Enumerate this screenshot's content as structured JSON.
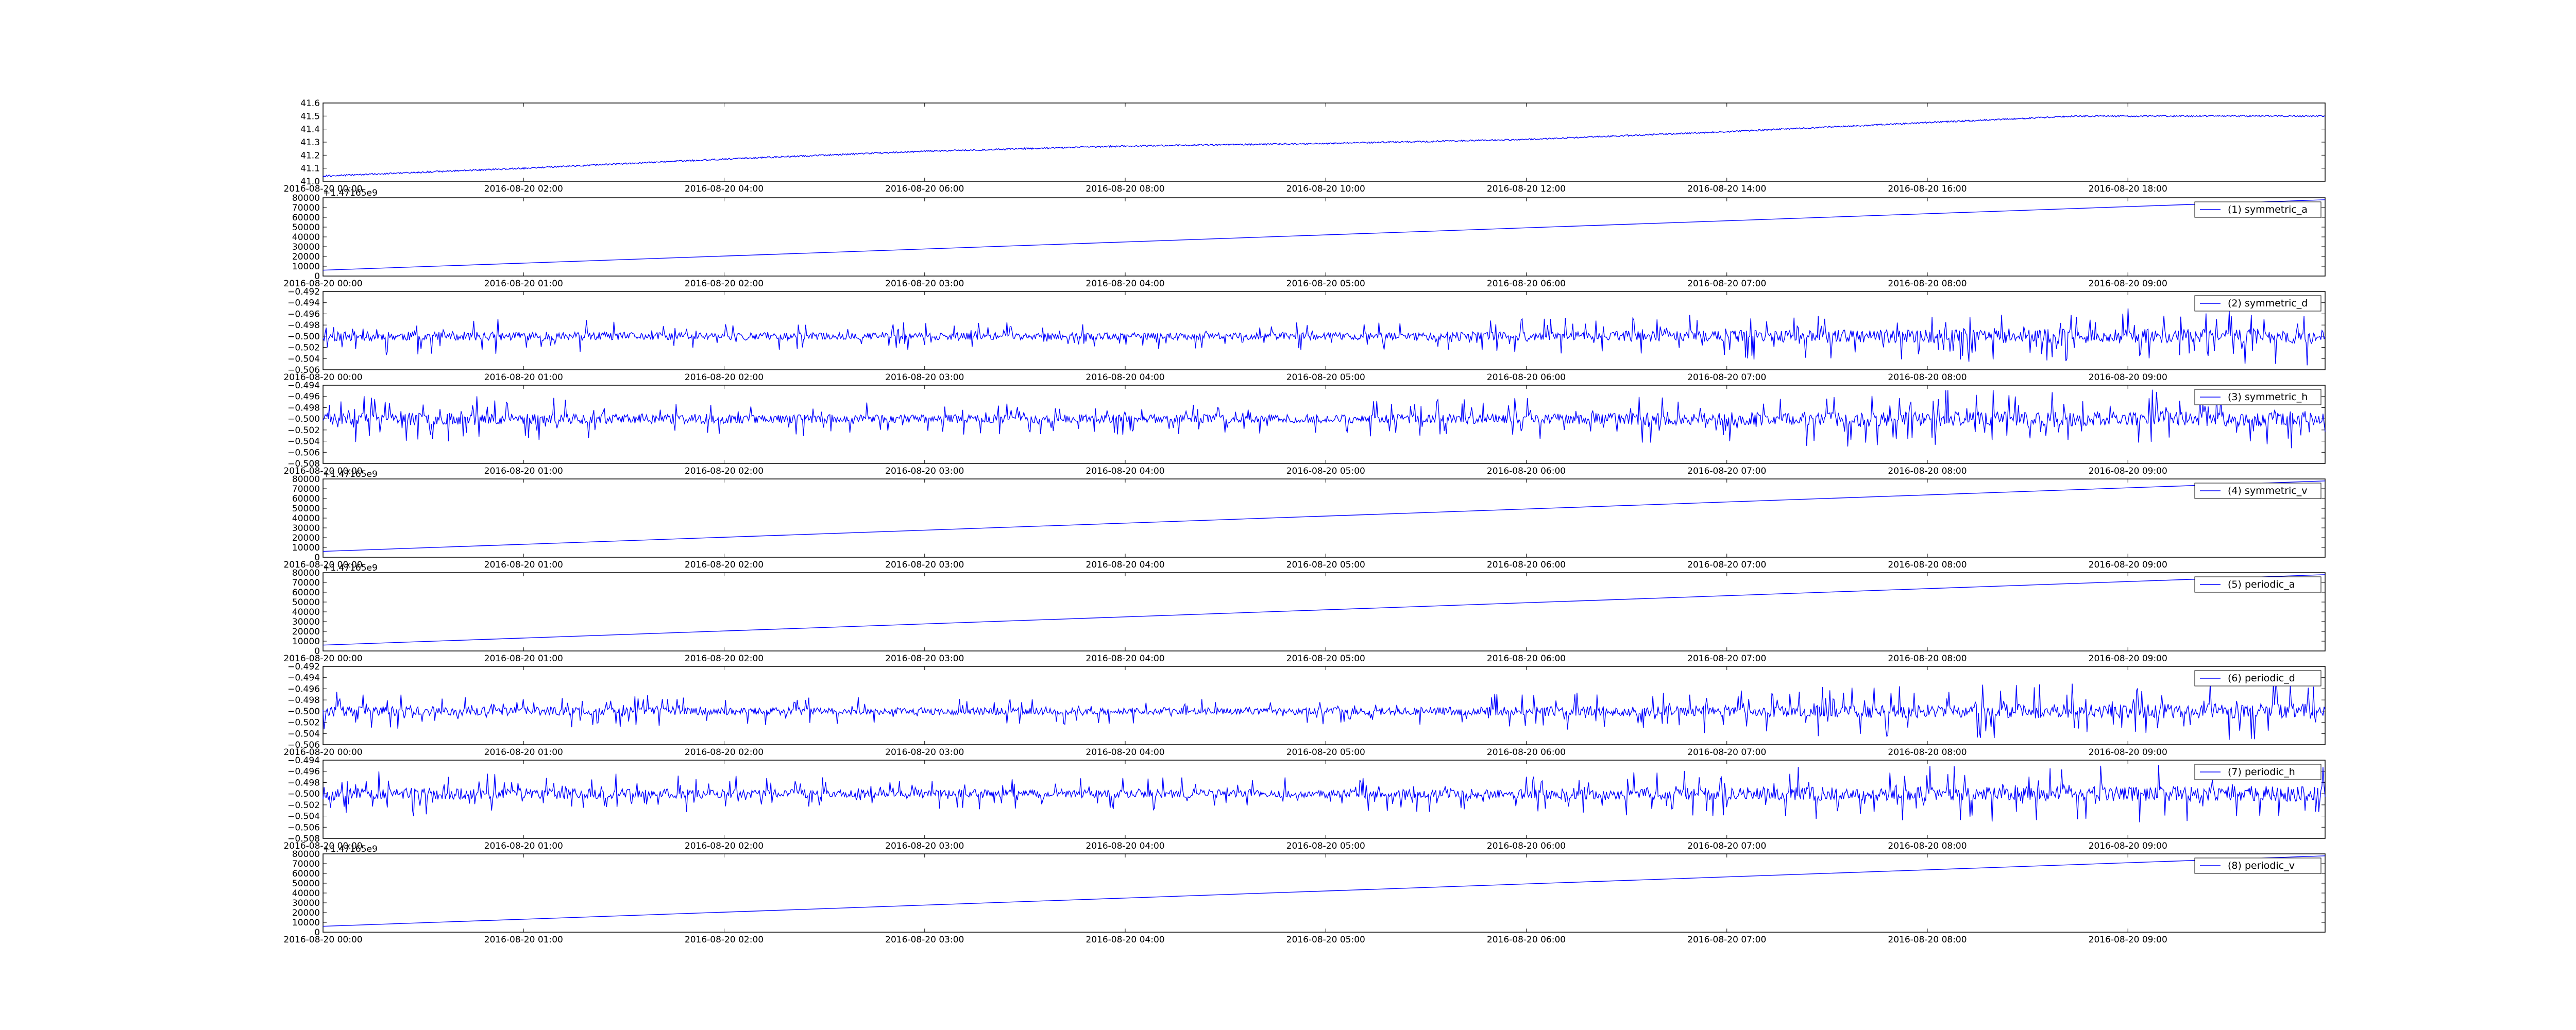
{
  "chart_data": [
    {
      "id": "p0",
      "type": "line",
      "color": "#0000ff",
      "legend": "",
      "x_kind": "datetime",
      "xlim": [
        "2016-08-20 00:00",
        "2016-08-20 19:58"
      ],
      "xticks": [
        "2016-08-20 00:00",
        "2016-08-20 02:00",
        "2016-08-20 04:00",
        "2016-08-20 06:00",
        "2016-08-20 08:00",
        "2016-08-20 10:00",
        "2016-08-20 12:00",
        "2016-08-20 14:00",
        "2016-08-20 16:00",
        "2016-08-20 18:00"
      ],
      "ylim": [
        41.0,
        41.6
      ],
      "yticks": [
        "41.0",
        "41.1",
        "41.2",
        "41.3",
        "41.4",
        "41.5",
        "41.6"
      ],
      "offset_text": "",
      "noise": 0.006,
      "points": [
        [
          "2016-08-20 00:00",
          41.04
        ],
        [
          "2016-08-20 02:00",
          41.1
        ],
        [
          "2016-08-20 04:00",
          41.17
        ],
        [
          "2016-08-20 06:00",
          41.23
        ],
        [
          "2016-08-20 08:00",
          41.27
        ],
        [
          "2016-08-20 10:00",
          41.29
        ],
        [
          "2016-08-20 12:00",
          41.32
        ],
        [
          "2016-08-20 14:00",
          41.38
        ],
        [
          "2016-08-20 16:00",
          41.45
        ],
        [
          "2016-08-20 17:30",
          41.5
        ],
        [
          "2016-08-20 19:58",
          41.5
        ]
      ]
    },
    {
      "id": "p1",
      "type": "line",
      "color": "#0000ff",
      "legend": "(1) symmetric_a",
      "x_kind": "datetime",
      "xlim": [
        "2016-08-20 00:00",
        "2016-08-20 09:59"
      ],
      "xticks": [
        "2016-08-20 00:00",
        "2016-08-20 01:00",
        "2016-08-20 02:00",
        "2016-08-20 03:00",
        "2016-08-20 04:00",
        "2016-08-20 05:00",
        "2016-08-20 06:00",
        "2016-08-20 07:00",
        "2016-08-20 08:00",
        "2016-08-20 09:00"
      ],
      "ylim": [
        0,
        80000
      ],
      "yticks": [
        "0",
        "10000",
        "20000",
        "30000",
        "40000",
        "50000",
        "60000",
        "70000",
        "80000"
      ],
      "offset_text": "+1.47165e9",
      "noise": 0,
      "points": [
        [
          "2016-08-20 00:00",
          6000
        ],
        [
          "2016-08-20 09:59",
          78000
        ]
      ]
    },
    {
      "id": "p2",
      "type": "line",
      "color": "#0000ff",
      "legend": "(2) symmetric_d",
      "x_kind": "datetime",
      "xlim": [
        "2016-08-20 00:00",
        "2016-08-20 09:59"
      ],
      "xticks": [
        "2016-08-20 00:00",
        "2016-08-20 01:00",
        "2016-08-20 02:00",
        "2016-08-20 03:00",
        "2016-08-20 04:00",
        "2016-08-20 05:00",
        "2016-08-20 06:00",
        "2016-08-20 07:00",
        "2016-08-20 08:00",
        "2016-08-20 09:00"
      ],
      "ylim": [
        -0.506,
        -0.492
      ],
      "yticks": [
        "−0.506",
        "−0.504",
        "−0.502",
        "−0.500",
        "−0.498",
        "−0.496",
        "−0.494",
        "−0.492"
      ],
      "offset_text": "",
      "noise_center": -0.5,
      "noise_amp": [
        0.0035,
        0.0025,
        0.0025,
        0.0045,
        0.0055
      ],
      "seed": 11
    },
    {
      "id": "p3",
      "type": "line",
      "color": "#0000ff",
      "legend": "(3) symmetric_h",
      "x_kind": "datetime",
      "xlim": [
        "2016-08-20 00:00",
        "2016-08-20 09:59"
      ],
      "xticks": [
        "2016-08-20 00:00",
        "2016-08-20 01:00",
        "2016-08-20 02:00",
        "2016-08-20 03:00",
        "2016-08-20 04:00",
        "2016-08-20 05:00",
        "2016-08-20 06:00",
        "2016-08-20 07:00",
        "2016-08-20 08:00",
        "2016-08-20 09:00"
      ],
      "ylim": [
        -0.508,
        -0.494
      ],
      "yticks": [
        "−0.508",
        "−0.506",
        "−0.504",
        "−0.502",
        "−0.500",
        "−0.498",
        "−0.496",
        "−0.494"
      ],
      "offset_text": "",
      "noise_center": -0.5,
      "noise_amp": [
        0.0045,
        0.003,
        0.003,
        0.005,
        0.0055
      ],
      "seed": 23
    },
    {
      "id": "p4",
      "type": "line",
      "color": "#0000ff",
      "legend": "(4) symmetric_v",
      "x_kind": "datetime",
      "xlim": [
        "2016-08-20 00:00",
        "2016-08-20 09:59"
      ],
      "xticks": [
        "2016-08-20 00:00",
        "2016-08-20 01:00",
        "2016-08-20 02:00",
        "2016-08-20 03:00",
        "2016-08-20 04:00",
        "2016-08-20 05:00",
        "2016-08-20 06:00",
        "2016-08-20 07:00",
        "2016-08-20 08:00",
        "2016-08-20 09:00"
      ],
      "ylim": [
        0,
        80000
      ],
      "yticks": [
        "0",
        "10000",
        "20000",
        "30000",
        "40000",
        "50000",
        "60000",
        "70000",
        "80000"
      ],
      "offset_text": "+1.47165e9",
      "noise": 0,
      "points": [
        [
          "2016-08-20 00:00",
          6000
        ],
        [
          "2016-08-20 09:59",
          78000
        ]
      ]
    },
    {
      "id": "p5",
      "type": "line",
      "color": "#0000ff",
      "legend": "(5) periodic_a",
      "x_kind": "datetime",
      "xlim": [
        "2016-08-20 00:00",
        "2016-08-20 09:59"
      ],
      "xticks": [
        "2016-08-20 00:00",
        "2016-08-20 01:00",
        "2016-08-20 02:00",
        "2016-08-20 03:00",
        "2016-08-20 04:00",
        "2016-08-20 05:00",
        "2016-08-20 06:00",
        "2016-08-20 07:00",
        "2016-08-20 08:00",
        "2016-08-20 09:00"
      ],
      "ylim": [
        0,
        80000
      ],
      "yticks": [
        "0",
        "10000",
        "20000",
        "30000",
        "40000",
        "50000",
        "60000",
        "70000",
        "80000"
      ],
      "offset_text": "+1.47165e9",
      "noise": 0,
      "points": [
        [
          "2016-08-20 00:00",
          6000
        ],
        [
          "2016-08-20 09:59",
          78000
        ]
      ]
    },
    {
      "id": "p6",
      "type": "line",
      "color": "#0000ff",
      "legend": "(6) periodic_d",
      "x_kind": "datetime",
      "xlim": [
        "2016-08-20 00:00",
        "2016-08-20 09:59"
      ],
      "xticks": [
        "2016-08-20 00:00",
        "2016-08-20 01:00",
        "2016-08-20 02:00",
        "2016-08-20 03:00",
        "2016-08-20 04:00",
        "2016-08-20 05:00",
        "2016-08-20 06:00",
        "2016-08-20 07:00",
        "2016-08-20 08:00",
        "2016-08-20 09:00"
      ],
      "ylim": [
        -0.506,
        -0.492
      ],
      "yticks": [
        "−0.506",
        "−0.504",
        "−0.502",
        "−0.500",
        "−0.498",
        "−0.496",
        "−0.494",
        "−0.492"
      ],
      "offset_text": "",
      "noise_center": -0.5,
      "noise_amp": [
        0.0035,
        0.0025,
        0.0025,
        0.0045,
        0.0055
      ],
      "seed": 37
    },
    {
      "id": "p7",
      "type": "line",
      "color": "#0000ff",
      "legend": "(7) periodic_h",
      "x_kind": "datetime",
      "xlim": [
        "2016-08-20 00:00",
        "2016-08-20 09:59"
      ],
      "xticks": [
        "2016-08-20 00:00",
        "2016-08-20 01:00",
        "2016-08-20 02:00",
        "2016-08-20 03:00",
        "2016-08-20 04:00",
        "2016-08-20 05:00",
        "2016-08-20 06:00",
        "2016-08-20 07:00",
        "2016-08-20 08:00",
        "2016-08-20 09:00"
      ],
      "ylim": [
        -0.508,
        -0.494
      ],
      "yticks": [
        "−0.508",
        "−0.506",
        "−0.504",
        "−0.502",
        "−0.500",
        "−0.498",
        "−0.496",
        "−0.494"
      ],
      "offset_text": "",
      "noise_center": -0.5,
      "noise_amp": [
        0.0045,
        0.003,
        0.003,
        0.005,
        0.0055
      ],
      "seed": 53
    },
    {
      "id": "p8",
      "type": "line",
      "color": "#0000ff",
      "legend": "(8) periodic_v",
      "x_kind": "datetime",
      "xlim": [
        "2016-08-20 00:00",
        "2016-08-20 09:59"
      ],
      "xticks": [
        "2016-08-20 00:00",
        "2016-08-20 01:00",
        "2016-08-20 02:00",
        "2016-08-20 03:00",
        "2016-08-20 04:00",
        "2016-08-20 05:00",
        "2016-08-20 06:00",
        "2016-08-20 07:00",
        "2016-08-20 08:00",
        "2016-08-20 09:00"
      ],
      "ylim": [
        0,
        80000
      ],
      "yticks": [
        "0",
        "10000",
        "20000",
        "30000",
        "40000",
        "50000",
        "60000",
        "70000",
        "80000"
      ],
      "offset_text": "+1.47165e9",
      "noise": 0,
      "points": [
        [
          "2016-08-20 00:00",
          6000
        ],
        [
          "2016-08-20 09:59",
          78000
        ]
      ]
    }
  ]
}
